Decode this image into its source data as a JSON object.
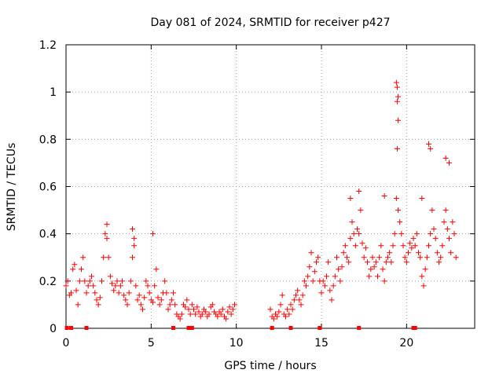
{
  "chart_data": {
    "type": "scatter",
    "title": "Day 081 of 2024, SRMTID for receiver p427",
    "xlabel": "GPS time / hours",
    "ylabel": "SRMTID / TECUs",
    "xlim": [
      0,
      24
    ],
    "ylim": [
      0,
      1.2
    ],
    "x_ticks": [
      0,
      5,
      10,
      15,
      20
    ],
    "x_tick_labels": [
      "0",
      "5",
      "10",
      "15",
      "20"
    ],
    "y_ticks": [
      0,
      0.2,
      0.4,
      0.6,
      0.8,
      1.0,
      1.2
    ],
    "y_tick_labels": [
      "0",
      "0.2",
      "0.4",
      "0.6",
      "0.8",
      "1",
      "1.2"
    ],
    "grid": true,
    "marker": "+",
    "color": "#ff0000",
    "series": [
      {
        "name": "SRMTID",
        "x": [
          0.0,
          0.1,
          0.2,
          0.3,
          0.4,
          0.5,
          0.6,
          0.7,
          0.8,
          0.9,
          1.0,
          1.1,
          1.2,
          1.3,
          1.4,
          1.5,
          1.6,
          1.7,
          1.8,
          1.9,
          2.0,
          2.1,
          2.2,
          2.3,
          2.4,
          2.5,
          2.6,
          2.7,
          2.8,
          2.9,
          3.0,
          3.1,
          3.2,
          3.3,
          3.4,
          3.5,
          3.6,
          3.7,
          3.8,
          3.9,
          4.0,
          4.1,
          4.2,
          4.3,
          4.4,
          4.5,
          4.6,
          4.7,
          4.8,
          4.9,
          5.0,
          5.1,
          5.2,
          5.3,
          5.4,
          5.5,
          5.6,
          5.7,
          5.8,
          5.9,
          6.0,
          6.1,
          6.2,
          6.3,
          6.4,
          6.5,
          6.6,
          6.7,
          6.8,
          6.9,
          7.0,
          7.1,
          7.2,
          7.3,
          7.4,
          7.5,
          7.6,
          7.7,
          7.8,
          7.9,
          8.0,
          8.1,
          8.2,
          8.3,
          8.4,
          8.5,
          8.6,
          8.7,
          8.8,
          8.9,
          9.0,
          9.1,
          9.2,
          9.3,
          9.4,
          9.5,
          9.6,
          9.7,
          9.8,
          9.9,
          12.0,
          12.1,
          12.2,
          12.3,
          12.4,
          12.5,
          12.6,
          12.7,
          12.8,
          12.9,
          13.0,
          13.1,
          13.2,
          13.3,
          13.4,
          13.5,
          13.6,
          13.7,
          13.8,
          13.9,
          14.0,
          14.1,
          14.2,
          14.3,
          14.4,
          14.5,
          14.6,
          14.7,
          14.8,
          14.9,
          15.0,
          15.1,
          15.2,
          15.3,
          15.4,
          15.5,
          15.6,
          15.7,
          15.8,
          15.9,
          16.0,
          16.1,
          16.2,
          16.3,
          16.4,
          16.5,
          16.6,
          16.7,
          16.8,
          16.9,
          17.0,
          17.1,
          17.2,
          17.3,
          17.4,
          17.5,
          17.6,
          17.7,
          17.8,
          17.9,
          18.0,
          18.1,
          18.2,
          18.3,
          18.4,
          18.5,
          18.6,
          18.7,
          18.8,
          18.9,
          19.0,
          19.1,
          19.2,
          19.3,
          19.4,
          19.5,
          19.6,
          19.7,
          19.8,
          19.9,
          20.0,
          20.1,
          20.2,
          20.3,
          20.4,
          20.5,
          20.6,
          20.7,
          20.8,
          20.9,
          21.0,
          21.1,
          21.2,
          21.3,
          21.4,
          21.5,
          21.6,
          21.7,
          21.8,
          21.9,
          22.0,
          22.1,
          22.2,
          22.3,
          22.4,
          22.5,
          22.6,
          22.7,
          22.8,
          22.9,
          2.4,
          3.9,
          4.0,
          5.1,
          19.4,
          19.45,
          19.5,
          19.45,
          19.5,
          19.45,
          21.3,
          21.4,
          22.3,
          22.5,
          16.7,
          17.2,
          18.7,
          20.9,
          0.05,
          0.3,
          1.2,
          6.3,
          7.2,
          7.4,
          12.1,
          13.2,
          14.9,
          17.2,
          20.4,
          20.5
        ],
        "y": [
          0.18,
          0.2,
          0.14,
          0.15,
          0.25,
          0.27,
          0.16,
          0.1,
          0.2,
          0.25,
          0.3,
          0.2,
          0.15,
          0.18,
          0.2,
          0.22,
          0.18,
          0.15,
          0.12,
          0.1,
          0.13,
          0.2,
          0.3,
          0.4,
          0.38,
          0.3,
          0.22,
          0.19,
          0.16,
          0.18,
          0.2,
          0.15,
          0.18,
          0.2,
          0.14,
          0.12,
          0.1,
          0.15,
          0.2,
          0.3,
          0.35,
          0.18,
          0.12,
          0.14,
          0.1,
          0.08,
          0.13,
          0.2,
          0.18,
          0.15,
          0.12,
          0.11,
          0.18,
          0.25,
          0.13,
          0.1,
          0.12,
          0.15,
          0.2,
          0.15,
          0.08,
          0.1,
          0.12,
          0.15,
          0.1,
          0.06,
          0.05,
          0.04,
          0.06,
          0.1,
          0.09,
          0.12,
          0.08,
          0.06,
          0.1,
          0.08,
          0.06,
          0.09,
          0.07,
          0.05,
          0.06,
          0.08,
          0.07,
          0.05,
          0.06,
          0.09,
          0.1,
          0.07,
          0.06,
          0.05,
          0.07,
          0.06,
          0.08,
          0.05,
          0.04,
          0.07,
          0.09,
          0.06,
          0.08,
          0.1,
          0.08,
          0.05,
          0.04,
          0.06,
          0.05,
          0.07,
          0.1,
          0.14,
          0.06,
          0.05,
          0.08,
          0.06,
          0.1,
          0.08,
          0.12,
          0.14,
          0.16,
          0.12,
          0.1,
          0.14,
          0.2,
          0.18,
          0.22,
          0.26,
          0.32,
          0.2,
          0.24,
          0.28,
          0.3,
          0.2,
          0.15,
          0.2,
          0.18,
          0.22,
          0.28,
          0.16,
          0.12,
          0.18,
          0.22,
          0.3,
          0.25,
          0.2,
          0.26,
          0.32,
          0.35,
          0.3,
          0.28,
          0.38,
          0.45,
          0.4,
          0.35,
          0.42,
          0.4,
          0.5,
          0.36,
          0.3,
          0.34,
          0.28,
          0.22,
          0.25,
          0.3,
          0.26,
          0.28,
          0.22,
          0.3,
          0.35,
          0.25,
          0.2,
          0.28,
          0.3,
          0.32,
          0.28,
          0.35,
          0.4,
          0.55,
          0.5,
          0.45,
          0.4,
          0.35,
          0.3,
          0.28,
          0.32,
          0.36,
          0.34,
          0.38,
          0.35,
          0.4,
          0.32,
          0.3,
          0.22,
          0.18,
          0.25,
          0.3,
          0.35,
          0.4,
          0.5,
          0.42,
          0.38,
          0.32,
          0.28,
          0.3,
          0.35,
          0.45,
          0.5,
          0.42,
          0.38,
          0.32,
          0.45,
          0.4,
          0.3,
          0.44,
          0.42,
          0.38,
          0.4,
          1.04,
          1.02,
          0.98,
          0.96,
          0.88,
          0.76,
          0.78,
          0.76,
          0.72,
          0.7,
          0.55,
          0.58,
          0.56,
          0.55,
          0.0,
          0.0,
          0.0,
          0.0,
          0.0,
          0.0,
          0.0,
          0.0,
          0.0,
          0.0,
          0.0,
          0.0
        ]
      }
    ]
  }
}
